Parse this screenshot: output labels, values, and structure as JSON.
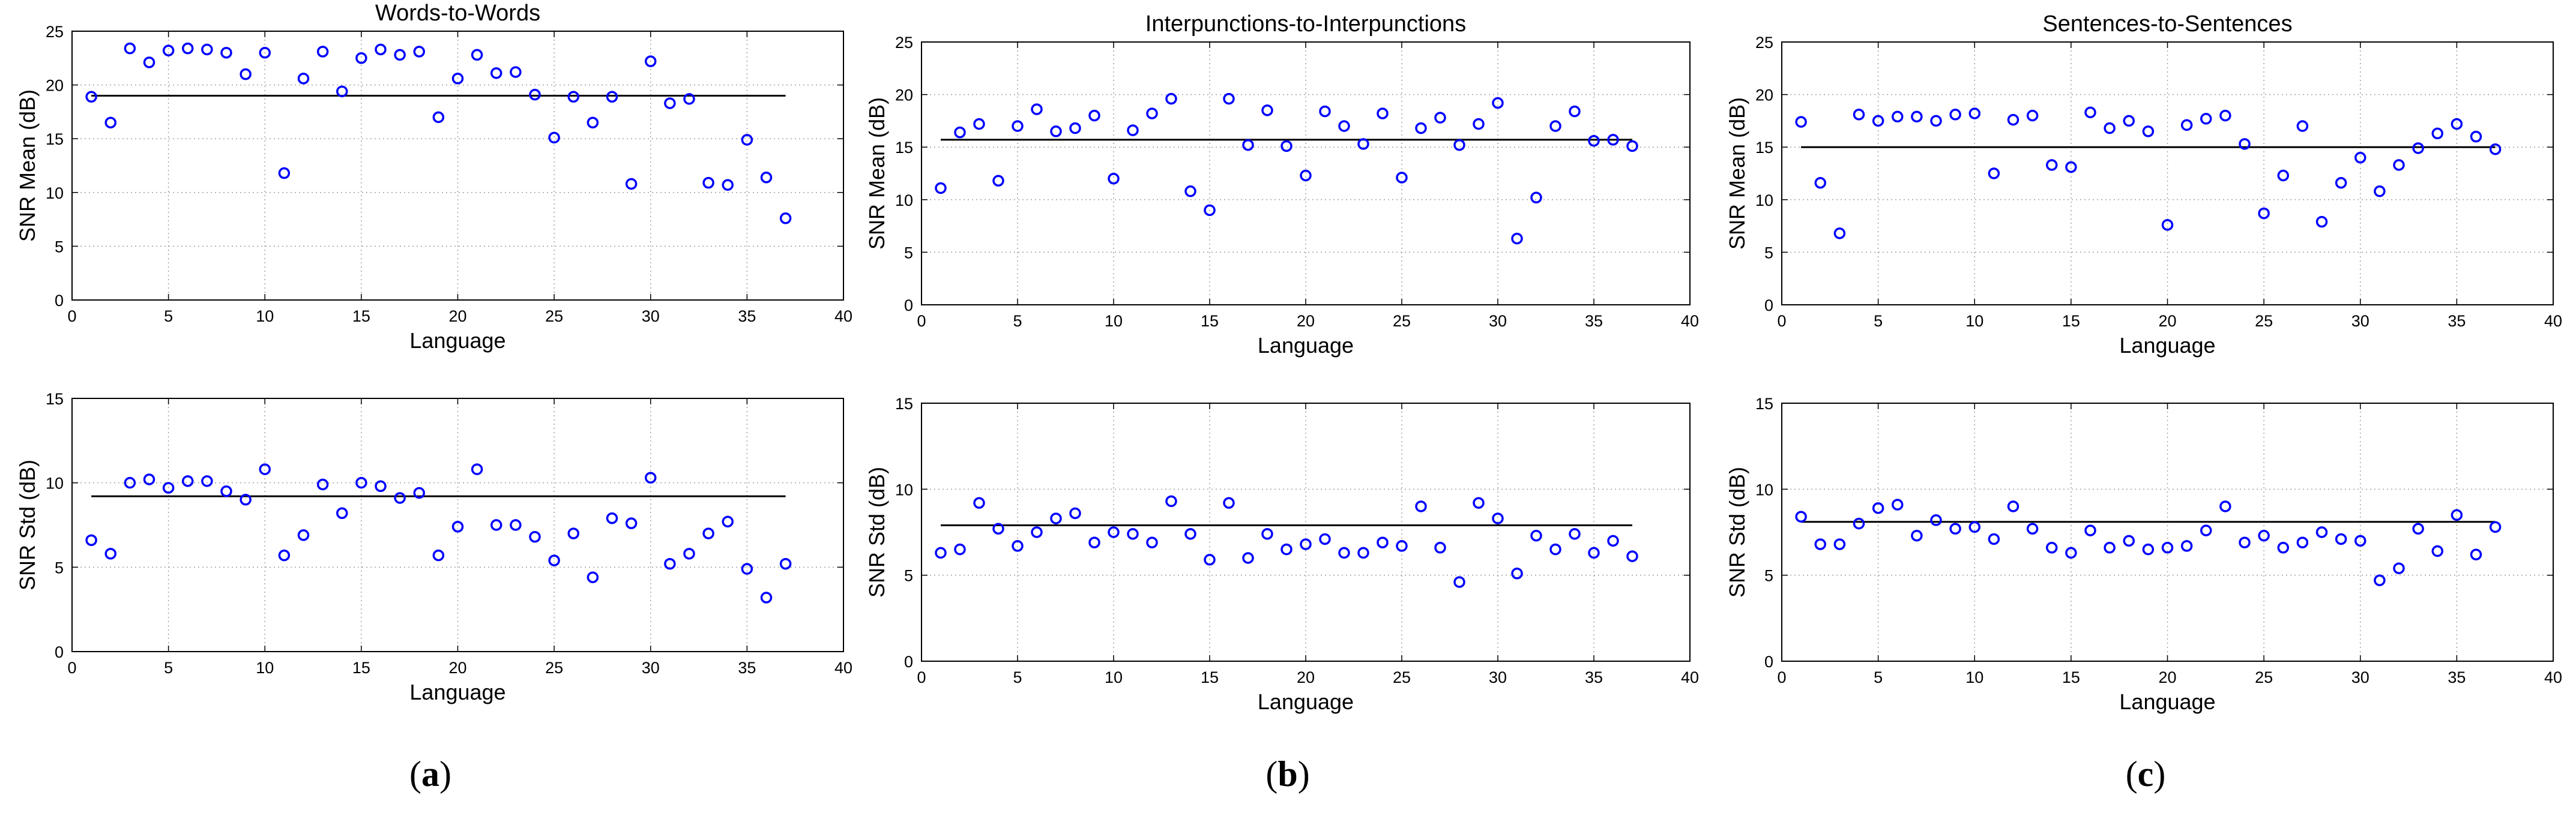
{
  "panels": [
    {
      "letter": "a"
    },
    {
      "letter": "b"
    },
    {
      "letter": "c"
    }
  ],
  "chart_data": [
    {
      "type": "scatter",
      "title": "Words-to-Words",
      "xlabel": "Language",
      "ylabel": "SNR Mean (dB)",
      "xlim": [
        0,
        40
      ],
      "ylim": [
        0,
        25
      ],
      "xticks": [
        "0",
        "5",
        "10",
        "15",
        "20",
        "25",
        "30",
        "35",
        "40"
      ],
      "yticks": [
        "0",
        "5",
        "10",
        "15",
        "20",
        "25"
      ],
      "grid": true,
      "marker_color": "#0000FF",
      "mean_line": 19.0,
      "x": [
        1,
        2,
        3,
        4,
        5,
        6,
        7,
        8,
        9,
        10,
        11,
        12,
        13,
        14,
        15,
        16,
        17,
        18,
        19,
        20,
        21,
        22,
        23,
        24,
        25,
        26,
        27,
        28,
        29,
        30,
        31,
        32,
        33,
        34,
        35,
        36,
        37
      ],
      "y": [
        18.9,
        16.5,
        23.4,
        22.1,
        23.2,
        23.4,
        23.3,
        23.0,
        21.0,
        23.0,
        11.8,
        20.6,
        23.1,
        19.4,
        22.5,
        23.3,
        22.8,
        23.1,
        17.0,
        20.6,
        22.8,
        21.1,
        21.2,
        19.1,
        15.1,
        18.9,
        16.5,
        18.9,
        10.8,
        22.2,
        18.3,
        18.7,
        10.9,
        10.7,
        14.9,
        11.4,
        7.6
      ]
    },
    {
      "type": "scatter",
      "title": "",
      "xlabel": "Language",
      "ylabel": "SNR Std (dB)",
      "xlim": [
        0,
        40
      ],
      "ylim": [
        0,
        15
      ],
      "xticks": [
        "0",
        "5",
        "10",
        "15",
        "20",
        "25",
        "30",
        "35",
        "40"
      ],
      "yticks": [
        "0",
        "5",
        "10",
        "15"
      ],
      "grid": true,
      "marker_color": "#0000FF",
      "mean_line": 9.2,
      "x": [
        1,
        2,
        3,
        4,
        5,
        6,
        7,
        8,
        9,
        10,
        11,
        12,
        13,
        14,
        15,
        16,
        17,
        18,
        19,
        20,
        21,
        22,
        23,
        24,
        25,
        26,
        27,
        28,
        29,
        30,
        31,
        32,
        33,
        34,
        35,
        36,
        37
      ],
      "y": [
        6.6,
        5.8,
        10.0,
        10.2,
        9.7,
        10.1,
        10.1,
        9.5,
        9.0,
        10.8,
        5.7,
        6.9,
        9.9,
        8.2,
        10.0,
        9.8,
        9.1,
        9.4,
        5.7,
        7.4,
        10.8,
        7.5,
        7.5,
        6.8,
        5.4,
        7.0,
        4.4,
        7.9,
        7.6,
        10.3,
        5.2,
        5.8,
        7.0,
        7.7,
        4.9,
        3.2,
        5.2
      ]
    },
    {
      "type": "scatter",
      "title": "Interpunctions-to-Interpunctions",
      "xlabel": "Language",
      "ylabel": "SNR Mean (dB)",
      "xlim": [
        0,
        40
      ],
      "ylim": [
        0,
        25
      ],
      "xticks": [
        "0",
        "5",
        "10",
        "15",
        "20",
        "25",
        "30",
        "35",
        "40"
      ],
      "yticks": [
        "0",
        "5",
        "10",
        "15",
        "20",
        "25"
      ],
      "grid": true,
      "marker_color": "#0000FF",
      "mean_line": 15.7,
      "x": [
        1,
        2,
        3,
        4,
        5,
        6,
        7,
        8,
        9,
        10,
        11,
        12,
        13,
        14,
        15,
        16,
        17,
        18,
        19,
        20,
        21,
        22,
        23,
        24,
        25,
        26,
        27,
        28,
        29,
        30,
        31,
        32,
        33,
        34,
        35,
        36,
        37
      ],
      "y": [
        11.1,
        16.4,
        17.2,
        11.8,
        17.0,
        18.6,
        16.5,
        16.8,
        18.0,
        12.0,
        16.6,
        18.2,
        19.6,
        10.8,
        9.0,
        19.6,
        15.2,
        18.5,
        15.1,
        12.3,
        18.4,
        17.0,
        15.3,
        18.2,
        12.1,
        16.8,
        17.8,
        15.2,
        17.2,
        19.2,
        6.3,
        10.2,
        17.0,
        18.4,
        15.6,
        15.7,
        15.1
      ]
    },
    {
      "type": "scatter",
      "title": "",
      "xlabel": "Language",
      "ylabel": "SNR Std (dB)",
      "xlim": [
        0,
        40
      ],
      "ylim": [
        0,
        15
      ],
      "xticks": [
        "0",
        "5",
        "10",
        "15",
        "20",
        "25",
        "30",
        "35",
        "40"
      ],
      "yticks": [
        "0",
        "5",
        "10",
        "15"
      ],
      "grid": true,
      "marker_color": "#0000FF",
      "mean_line": 7.9,
      "x": [
        1,
        2,
        3,
        4,
        5,
        6,
        7,
        8,
        9,
        10,
        11,
        12,
        13,
        14,
        15,
        16,
        17,
        18,
        19,
        20,
        21,
        22,
        23,
        24,
        25,
        26,
        27,
        28,
        29,
        30,
        31,
        32,
        33,
        34,
        35,
        36,
        37
      ],
      "y": [
        6.3,
        6.5,
        9.2,
        7.7,
        6.7,
        7.5,
        8.3,
        8.6,
        6.9,
        7.5,
        7.4,
        6.9,
        9.3,
        7.4,
        5.9,
        9.2,
        6.0,
        7.4,
        6.5,
        6.8,
        7.1,
        6.3,
        6.3,
        6.9,
        6.7,
        9.0,
        6.6,
        4.6,
        9.2,
        8.3,
        5.1,
        7.3,
        6.5,
        7.4,
        6.3,
        7.0,
        6.1
      ]
    },
    {
      "type": "scatter",
      "title": "Sentences-to-Sentences",
      "xlabel": "Language",
      "ylabel": "SNR Mean (dB)",
      "xlim": [
        0,
        40
      ],
      "ylim": [
        0,
        25
      ],
      "xticks": [
        "0",
        "5",
        "10",
        "15",
        "20",
        "25",
        "30",
        "35",
        "40"
      ],
      "yticks": [
        "0",
        "5",
        "10",
        "15",
        "20",
        "25"
      ],
      "grid": true,
      "marker_color": "#0000FF",
      "mean_line": 15.0,
      "x": [
        1,
        2,
        3,
        4,
        5,
        6,
        7,
        8,
        9,
        10,
        11,
        12,
        13,
        14,
        15,
        16,
        17,
        18,
        19,
        20,
        21,
        22,
        23,
        24,
        25,
        26,
        27,
        28,
        29,
        30,
        31,
        32,
        33,
        34,
        35,
        36,
        37
      ],
      "y": [
        17.4,
        11.6,
        6.8,
        18.1,
        17.5,
        17.9,
        17.9,
        17.5,
        18.1,
        18.2,
        12.5,
        17.6,
        18.0,
        13.3,
        13.1,
        18.3,
        16.8,
        17.5,
        16.5,
        7.6,
        17.1,
        17.7,
        18.0,
        15.3,
        8.7,
        12.3,
        17.0,
        7.9,
        11.6,
        14.0,
        10.8,
        13.3,
        14.9,
        16.3,
        17.2,
        16.0,
        14.8
      ]
    },
    {
      "type": "scatter",
      "title": "",
      "xlabel": "Language",
      "ylabel": "SNR Std (dB)",
      "xlim": [
        0,
        40
      ],
      "ylim": [
        0,
        15
      ],
      "xticks": [
        "0",
        "5",
        "10",
        "15",
        "20",
        "25",
        "30",
        "35",
        "40"
      ],
      "yticks": [
        "0",
        "5",
        "10",
        "15"
      ],
      "grid": true,
      "marker_color": "#0000FF",
      "mean_line": 8.1,
      "x": [
        1,
        2,
        3,
        4,
        5,
        6,
        7,
        8,
        9,
        10,
        11,
        12,
        13,
        14,
        15,
        16,
        17,
        18,
        19,
        20,
        21,
        22,
        23,
        24,
        25,
        26,
        27,
        28,
        29,
        30,
        31,
        32,
        33,
        34,
        35,
        36,
        37
      ],
      "y": [
        8.4,
        6.8,
        6.8,
        8.0,
        8.9,
        9.1,
        7.3,
        8.2,
        7.7,
        7.8,
        7.1,
        9.0,
        7.7,
        6.6,
        6.3,
        7.6,
        6.6,
        7.0,
        6.5,
        6.6,
        6.7,
        7.6,
        9.0,
        6.9,
        7.3,
        6.6,
        6.9,
        7.5,
        7.1,
        7.0,
        4.7,
        5.4,
        7.7,
        6.4,
        8.5,
        6.2,
        7.8
      ]
    }
  ]
}
